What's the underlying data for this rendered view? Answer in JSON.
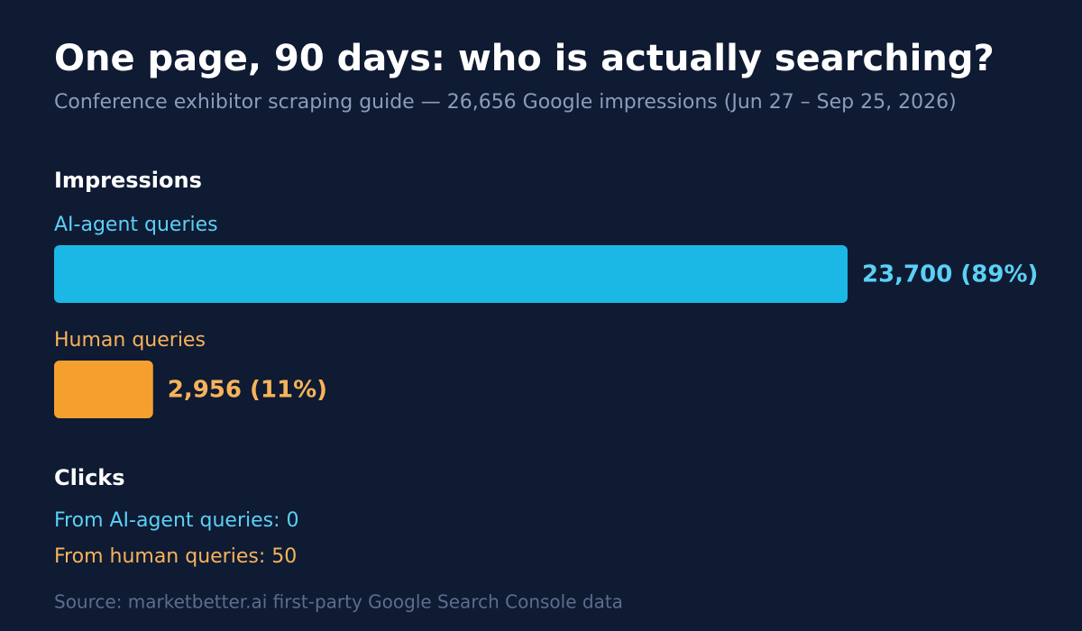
{
  "chart_data": {
    "type": "bar",
    "title": "One page, 90 days: who is actually searching?",
    "subtitle": "Conference exhibitor scraping guide — 26,656 Google impressions (Jun 27 – Sep 25, 2026)",
    "section_title": "Impressions",
    "categories": [
      "AI-agent queries",
      "Human queries"
    ],
    "values": [
      23700,
      2956
    ],
    "value_labels": [
      "23,700 (89%)",
      "2,956 (11%)"
    ],
    "colors": [
      "#1bb8e6",
      "#f5a02e"
    ],
    "clicks": {
      "title": "Clicks",
      "lines": [
        "From AI-agent queries: 0",
        "From human queries: 50"
      ]
    },
    "source": "Source: marketbetter.ai first-party Google Search Console data"
  }
}
